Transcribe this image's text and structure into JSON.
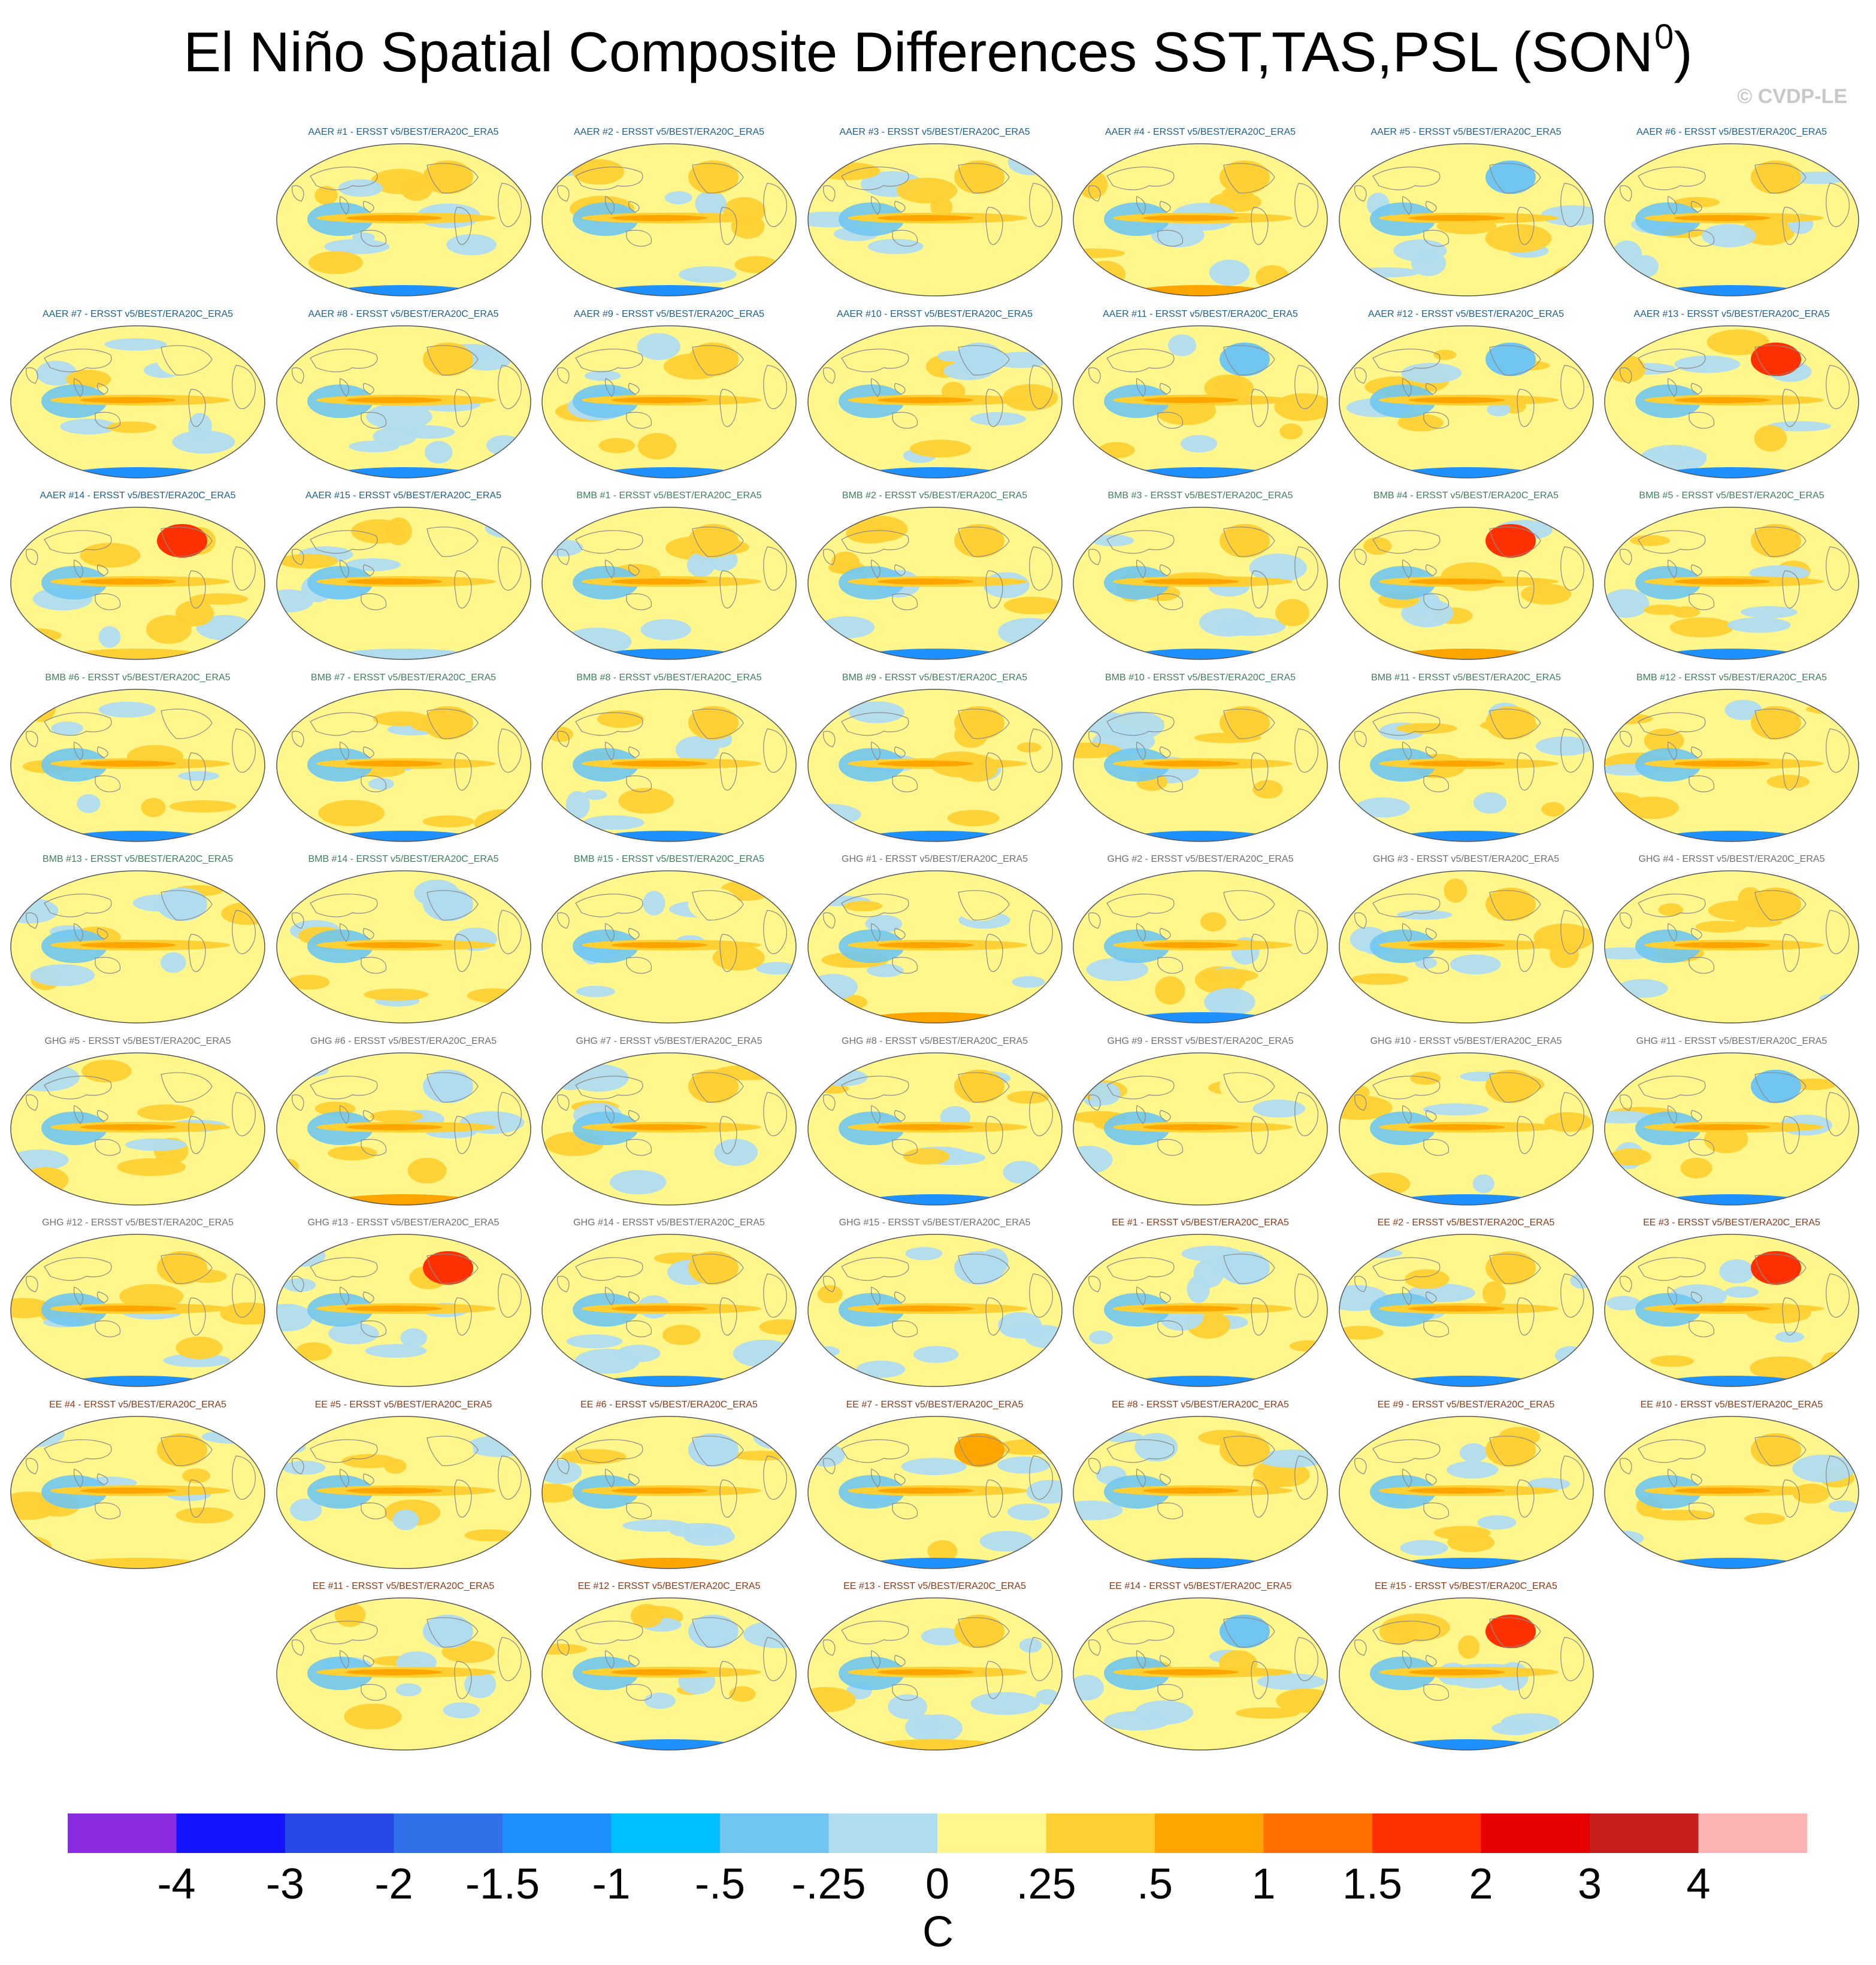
{
  "title": {
    "main": "El Niño Spatial Composite Differences SST,TAS,PSL (SON",
    "superscript": "0",
    "close": ")"
  },
  "copyright": "© CVDP-LE",
  "panel_suffix": " - ERSST v5/BEST/ERA20C_ERA5",
  "group_colors": {
    "AAER": "#1f5f8b",
    "BMB": "#3f7f5f",
    "GHG": "#707070",
    "EE": "#8b3a1a"
  },
  "chart_data": {
    "type": "map-panels",
    "title": "El Niño Spatial Composite Differences SST,TAS,PSL (SON0)",
    "units": "C",
    "colorbar": {
      "labels": [
        "-4",
        "-3",
        "-2",
        "-1.5",
        "-1",
        "-.5",
        "-.25",
        "0",
        ".25",
        ".5",
        "1",
        "1.5",
        "2",
        "3",
        "4"
      ],
      "colors": [
        "#8a2be2",
        "#1414ff",
        "#2848e8",
        "#3070e8",
        "#1e90ff",
        "#00bfff",
        "#70c6f0",
        "#b0dcf0",
        "#fff68c",
        "#ffd033",
        "#ffa500",
        "#ff7000",
        "#ff3000",
        "#e60000",
        "#c81e1e",
        "#ffb4b4"
      ]
    },
    "panels": [
      {
        "group": "AAER",
        "member": 1,
        "na": "orange",
        "ant": "blue"
      },
      {
        "group": "AAER",
        "member": 2,
        "na": "orange",
        "ant": "blue"
      },
      {
        "group": "AAER",
        "member": 3,
        "na": "orange",
        "ant": "yellow"
      },
      {
        "group": "AAER",
        "member": 4,
        "na": "orange",
        "ant": "deep-orange"
      },
      {
        "group": "AAER",
        "member": 5,
        "na": "blue",
        "ant": "yellow"
      },
      {
        "group": "AAER",
        "member": 6,
        "na": "orange",
        "ant": "blue"
      },
      {
        "group": "AAER",
        "member": 7,
        "na": "yellow",
        "ant": "blue"
      },
      {
        "group": "AAER",
        "member": 8,
        "na": "orange",
        "ant": "blue"
      },
      {
        "group": "AAER",
        "member": 9,
        "na": "orange",
        "ant": "blue"
      },
      {
        "group": "AAER",
        "member": 10,
        "na": "lightblue",
        "ant": "blue"
      },
      {
        "group": "AAER",
        "member": 11,
        "na": "blue",
        "ant": "blue"
      },
      {
        "group": "AAER",
        "member": 12,
        "na": "blue",
        "ant": "blue"
      },
      {
        "group": "AAER",
        "member": 13,
        "na": "red",
        "ant": "blue"
      },
      {
        "group": "AAER",
        "member": 14,
        "na": "red",
        "ant": "orange"
      },
      {
        "group": "AAER",
        "member": 15,
        "na": "yellow",
        "ant": "lightblue"
      },
      {
        "group": "BMB",
        "member": 1,
        "na": "orange",
        "ant": "blue"
      },
      {
        "group": "BMB",
        "member": 2,
        "na": "orange",
        "ant": "blue"
      },
      {
        "group": "BMB",
        "member": 3,
        "na": "orange",
        "ant": "blue"
      },
      {
        "group": "BMB",
        "member": 4,
        "na": "red",
        "ant": "deep-orange"
      },
      {
        "group": "BMB",
        "member": 5,
        "na": "orange",
        "ant": "blue"
      },
      {
        "group": "BMB",
        "member": 6,
        "na": "yellow",
        "ant": "blue"
      },
      {
        "group": "BMB",
        "member": 7,
        "na": "orange",
        "ant": "blue"
      },
      {
        "group": "BMB",
        "member": 8,
        "na": "orange",
        "ant": "blue"
      },
      {
        "group": "BMB",
        "member": 9,
        "na": "orange",
        "ant": "blue"
      },
      {
        "group": "BMB",
        "member": 10,
        "na": "orange",
        "ant": "blue"
      },
      {
        "group": "BMB",
        "member": 11,
        "na": "orange",
        "ant": "blue"
      },
      {
        "group": "BMB",
        "member": 12,
        "na": "orange",
        "ant": "blue"
      },
      {
        "group": "BMB",
        "member": 13,
        "na": "lightblue",
        "ant": "yellow"
      },
      {
        "group": "BMB",
        "member": 14,
        "na": "lightblue",
        "ant": "yellow"
      },
      {
        "group": "BMB",
        "member": 15,
        "na": "yellow",
        "ant": "yellow"
      },
      {
        "group": "GHG",
        "member": 1,
        "na": "yellow",
        "ant": "deep-orange"
      },
      {
        "group": "GHG",
        "member": 2,
        "na": "yellow",
        "ant": "blue"
      },
      {
        "group": "GHG",
        "member": 3,
        "na": "orange",
        "ant": "yellow"
      },
      {
        "group": "GHG",
        "member": 4,
        "na": "orange",
        "ant": "yellow"
      },
      {
        "group": "GHG",
        "member": 5,
        "na": "yellow",
        "ant": "yellow"
      },
      {
        "group": "GHG",
        "member": 6,
        "na": "lightblue",
        "ant": "deep-orange"
      },
      {
        "group": "GHG",
        "member": 7,
        "na": "orange",
        "ant": "yellow"
      },
      {
        "group": "GHG",
        "member": 8,
        "na": "orange",
        "ant": "blue"
      },
      {
        "group": "GHG",
        "member": 9,
        "na": "yellow",
        "ant": "yellow"
      },
      {
        "group": "GHG",
        "member": 10,
        "na": "orange",
        "ant": "blue"
      },
      {
        "group": "GHG",
        "member": 11,
        "na": "blue",
        "ant": "blue"
      },
      {
        "group": "GHG",
        "member": 12,
        "na": "orange",
        "ant": "blue"
      },
      {
        "group": "GHG",
        "member": 13,
        "na": "red",
        "ant": "yellow"
      },
      {
        "group": "GHG",
        "member": 14,
        "na": "orange",
        "ant": "blue"
      },
      {
        "group": "GHG",
        "member": 15,
        "na": "lightblue",
        "ant": "yellow"
      },
      {
        "group": "EE",
        "member": 1,
        "na": "lightblue",
        "ant": "blue"
      },
      {
        "group": "EE",
        "member": 2,
        "na": "orange",
        "ant": "blue"
      },
      {
        "group": "EE",
        "member": 3,
        "na": "red",
        "ant": "blue"
      },
      {
        "group": "EE",
        "member": 4,
        "na": "orange",
        "ant": "orange"
      },
      {
        "group": "EE",
        "member": 5,
        "na": "yellow",
        "ant": "yellow"
      },
      {
        "group": "EE",
        "member": 6,
        "na": "lightblue",
        "ant": "deep-orange"
      },
      {
        "group": "EE",
        "member": 7,
        "na": "deep-orange",
        "ant": "blue"
      },
      {
        "group": "EE",
        "member": 8,
        "na": "orange",
        "ant": "blue"
      },
      {
        "group": "EE",
        "member": 9,
        "na": "orange",
        "ant": "blue"
      },
      {
        "group": "EE",
        "member": 10,
        "na": "orange",
        "ant": "blue"
      },
      {
        "group": "EE",
        "member": 11,
        "na": "lightblue",
        "ant": "yellow"
      },
      {
        "group": "EE",
        "member": 12,
        "na": "lightblue",
        "ant": "blue"
      },
      {
        "group": "EE",
        "member": 13,
        "na": "orange",
        "ant": "orange"
      },
      {
        "group": "EE",
        "member": 14,
        "na": "blue",
        "ant": "yellow"
      },
      {
        "group": "EE",
        "member": 15,
        "na": "red",
        "ant": "blue"
      }
    ]
  }
}
